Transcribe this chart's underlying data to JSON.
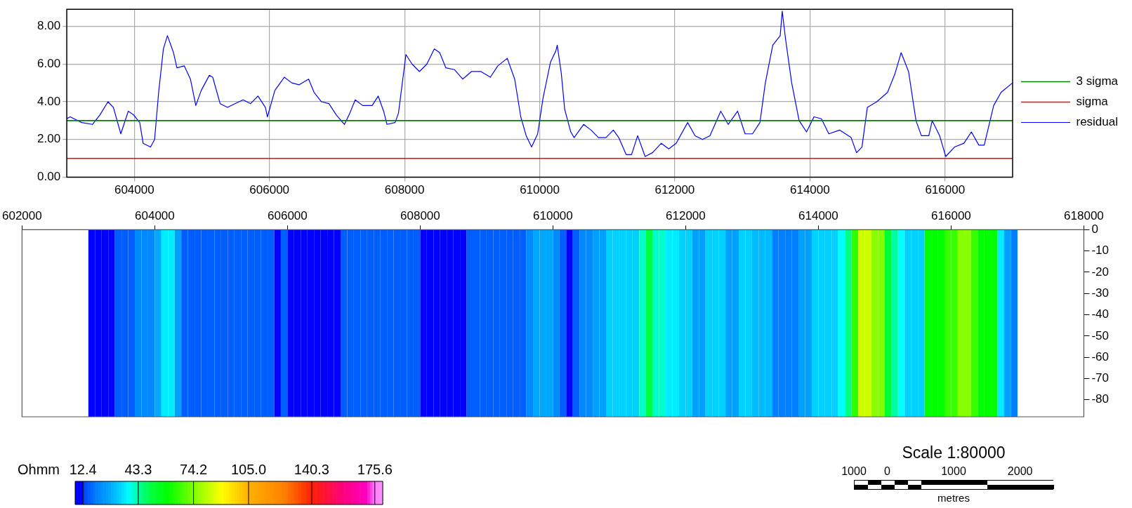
{
  "chart_data": [
    {
      "type": "line",
      "x": [
        603000,
        603050,
        603220,
        603380,
        603490,
        603610,
        603690,
        603800,
        603910,
        603990,
        604080,
        604130,
        604240,
        604300,
        604360,
        604430,
        604490,
        604580,
        604630,
        604740,
        604830,
        604910,
        604990,
        605110,
        605160,
        605270,
        605380,
        605490,
        605610,
        605720,
        605830,
        605940,
        605970,
        606080,
        606220,
        606330,
        606440,
        606580,
        606660,
        606770,
        606880,
        606990,
        607110,
        607190,
        607270,
        607380,
        607520,
        607610,
        607690,
        607740,
        607860,
        607910,
        608020,
        608110,
        608220,
        608330,
        608440,
        608520,
        608610,
        608740,
        608860,
        608990,
        609130,
        609270,
        609380,
        609520,
        609630,
        609720,
        609800,
        609880,
        609970,
        610050,
        610160,
        610240,
        610260,
        610320,
        610370,
        610460,
        610510,
        610650,
        610760,
        610870,
        610980,
        611090,
        611170,
        611280,
        611360,
        611450,
        611560,
        611670,
        611800,
        611910,
        612020,
        612190,
        612300,
        612410,
        612520,
        612680,
        612790,
        612930,
        613040,
        613150,
        613260,
        613340,
        613450,
        613560,
        613590,
        613640,
        613730,
        613840,
        613950,
        614060,
        614170,
        614280,
        614440,
        614610,
        614690,
        614770,
        614850,
        614990,
        615150,
        615260,
        615350,
        615460,
        615570,
        615650,
        615760,
        615810,
        615920,
        616010,
        616140,
        616280,
        616390,
        616500,
        616580,
        616720,
        616830,
        617000
      ],
      "series": [
        {
          "name": "residual",
          "color": "#0000ff",
          "values": [
            3.1,
            3.2,
            2.9,
            2.8,
            3.3,
            4.0,
            3.7,
            2.3,
            3.5,
            3.3,
            2.9,
            1.8,
            1.6,
            2.0,
            4.5,
            6.8,
            7.5,
            6.6,
            5.8,
            5.9,
            5.2,
            3.8,
            4.6,
            5.4,
            5.3,
            3.9,
            3.7,
            3.9,
            4.1,
            3.9,
            4.3,
            3.7,
            3.2,
            4.6,
            5.3,
            5.0,
            4.9,
            5.2,
            4.5,
            4.0,
            3.9,
            3.3,
            2.8,
            3.4,
            4.1,
            3.8,
            3.8,
            4.3,
            3.5,
            2.8,
            2.9,
            3.4,
            6.5,
            6.0,
            5.6,
            6.0,
            6.8,
            6.6,
            5.8,
            5.7,
            5.2,
            5.6,
            5.6,
            5.3,
            5.9,
            6.3,
            5.2,
            3.2,
            2.2,
            1.6,
            2.3,
            4.2,
            6.1,
            6.7,
            7.0,
            5.5,
            3.6,
            2.4,
            2.1,
            2.8,
            2.5,
            2.1,
            2.1,
            2.5,
            2.1,
            1.2,
            1.2,
            2.2,
            1.1,
            1.3,
            1.8,
            1.5,
            1.8,
            2.9,
            2.2,
            2.0,
            2.2,
            3.5,
            2.8,
            3.5,
            2.3,
            2.3,
            2.9,
            5.0,
            7.0,
            7.5,
            8.8,
            7.3,
            5.0,
            3.0,
            2.4,
            3.2,
            3.1,
            2.3,
            2.5,
            2.1,
            1.3,
            1.6,
            3.7,
            4.0,
            4.5,
            5.5,
            6.6,
            5.6,
            3.0,
            2.2,
            2.2,
            3.0,
            2.2,
            1.1,
            1.6,
            1.8,
            2.4,
            1.7,
            1.7,
            3.8,
            4.5,
            5.0
          ]
        }
      ],
      "xlim": [
        603000,
        617000
      ],
      "xticks": [
        604000,
        606000,
        608000,
        610000,
        612000,
        614000,
        616000
      ],
      "ylim": [
        0,
        8.9
      ],
      "yticks": [
        {
          "value": 0,
          "label": "0.00"
        },
        {
          "value": 2,
          "label": "2.00"
        },
        {
          "value": 4,
          "label": "4.00"
        },
        {
          "value": 6,
          "label": "6.00"
        },
        {
          "value": 8,
          "label": "8.00"
        }
      ],
      "ref_lines": [
        {
          "axis": "y",
          "value": 3,
          "label": "3 sigma",
          "color": "#008000"
        },
        {
          "axis": "y",
          "value": 1,
          "label": "sigma",
          "color": "#ff0000"
        }
      ],
      "grid": true,
      "legend": "right"
    },
    {
      "type": "heatmap",
      "x": [
        603050,
        603150,
        603250,
        603350,
        603450,
        603550,
        603650,
        603750,
        603850,
        603950,
        604050,
        604150,
        604250,
        604350,
        604450,
        604550,
        604650,
        604750,
        604850,
        604950,
        605050,
        605150,
        605250,
        605350,
        605450,
        605550,
        605650,
        605750,
        605850,
        605950,
        606050,
        606150,
        606250,
        606350,
        606450,
        606550,
        606650,
        606750,
        606850,
        606950,
        607050,
        607150,
        607250,
        607350,
        607450,
        607550,
        607650,
        607750,
        607850,
        607950,
        608050,
        608150,
        608250,
        608350,
        608450,
        608550,
        608650,
        608750,
        608850,
        608950,
        609050,
        609150,
        609250,
        609350,
        609450,
        609550,
        609650,
        609750,
        609850,
        609950,
        610050,
        610150,
        610250,
        610350,
        610450,
        610550,
        610650,
        610750,
        610850,
        610950,
        611050,
        611150,
        611250,
        611350,
        611450,
        611550,
        611650,
        611750,
        611850,
        611950,
        612050,
        612150,
        612250,
        612350,
        612450,
        612550,
        612650,
        612750,
        612850,
        612950,
        613050,
        613150,
        613250,
        613350,
        613450,
        613550,
        613650,
        613750,
        613850,
        613950,
        614050,
        614150,
        614250,
        614350,
        614450,
        614550,
        614650,
        614750,
        614850,
        614950,
        615050,
        615150,
        615250,
        615350,
        615450,
        615550,
        615650,
        615750,
        615850,
        615950,
        616050,
        616150,
        616250,
        616350,
        616450,
        616550,
        616650,
        616750,
        616850,
        616950
      ],
      "cells": [
        [
          10,
          10,
          10,
          10,
          16,
          16,
          16,
          22,
          22,
          22,
          27,
          36,
          36,
          26,
          16,
          16,
          16,
          16,
          16,
          16,
          16,
          16,
          16,
          16,
          16,
          16,
          16,
          16,
          10,
          16,
          10,
          10,
          10,
          10,
          10,
          10,
          10,
          10,
          16,
          16,
          16,
          16,
          16,
          16,
          16,
          16,
          16,
          16,
          16,
          16,
          10,
          10,
          10,
          10,
          10,
          10,
          10,
          16,
          16,
          16,
          16,
          16,
          16,
          16,
          16,
          16,
          22,
          27,
          27,
          27,
          22,
          16,
          10,
          16,
          22,
          22,
          26,
          26,
          33,
          33,
          33,
          33,
          33,
          41,
          50,
          41,
          41,
          36,
          36,
          33,
          33,
          26,
          26,
          33,
          33,
          33,
          26,
          26,
          33,
          33,
          30,
          30,
          30,
          20,
          20,
          20,
          20,
          26,
          26,
          33,
          33,
          33,
          33,
          38,
          45,
          65,
          84,
          84,
          75,
          75,
          52,
          43,
          38,
          33,
          33,
          33,
          60,
          60,
          60,
          66,
          66,
          75,
          75,
          66,
          60,
          60,
          60,
          36,
          26,
          20
        ]
      ],
      "xlim": [
        602000,
        618000
      ],
      "xticks": [
        602000,
        604000,
        606000,
        608000,
        610000,
        612000,
        614000,
        616000,
        618000
      ],
      "ylim": [
        -88,
        0
      ],
      "yticks": [
        0,
        -10,
        -20,
        -30,
        -40,
        -50,
        -60,
        -70,
        -80
      ],
      "clabel": "Ohmm",
      "clim": [
        8,
        180
      ],
      "cticks": [
        12.4,
        43.3,
        74.2,
        {
          "value": 105,
          "label": "105.0"
        },
        140.3,
        175.6
      ],
      "annotations": [
        "Scale 1:80000",
        "1000",
        "0",
        "1000",
        "2000",
        "metres"
      ]
    }
  ]
}
